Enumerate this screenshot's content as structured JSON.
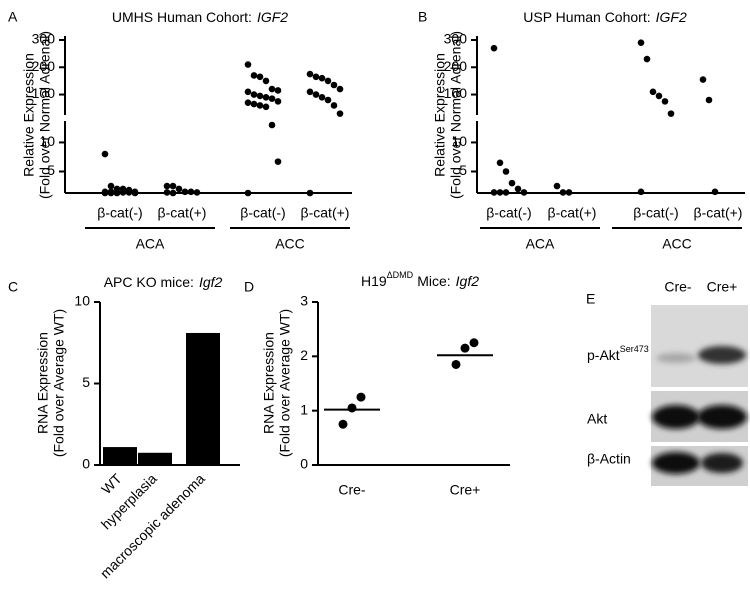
{
  "chart_data": [
    {
      "type": "grouped-dot-plot",
      "panel": "A",
      "title": "UMHS Human Cohort:",
      "title_gene": "IGF2",
      "ylabel": [
        "Relative Expression",
        "(Fold over Normal Adrenal)"
      ],
      "groups": [
        {
          "name": "ACA",
          "categories": [
            "β-cat(-)",
            "β-cat(+)"
          ],
          "values": [
            [
              8,
              2.5,
              2,
              2,
              1.8,
              1.5,
              1.5,
              1.5,
              1.4,
              1.4,
              1.4,
              1.3,
              1.3,
              1.3,
              1.3
            ],
            [
              2.5,
              2.5,
              2,
              1.5,
              1.5,
              1.4,
              1.4,
              1.3
            ]
          ]
        },
        {
          "name": "ACC",
          "categories": [
            "β-cat(-)",
            "β-cat(+)"
          ],
          "values": [
            [
              210,
              170,
              165,
              150,
              120,
              115,
              110,
              100,
              95,
              90,
              85,
              75,
              70,
              65,
              60,
              55,
              13,
              6.7,
              1.3
            ],
            [
              175,
              165,
              160,
              150,
              135,
              120,
              110,
              100,
              90,
              80,
              60,
              30,
              1.3
            ]
          ]
        }
      ],
      "ylim": [
        1.3,
        13
      ],
      "ylim_upper": [
        25,
        300
      ],
      "yticks": [
        5,
        10,
        100,
        200,
        300
      ],
      "color": "#000000"
    },
    {
      "type": "grouped-dot-plot",
      "panel": "B",
      "title": "USP Human Cohort:",
      "title_gene": "IGF2",
      "ylabel": [
        "Relative Expression",
        "(Fold over Normal Adrenal)"
      ],
      "groups": [
        {
          "name": "ACA",
          "categories": [
            "β-cat(-)",
            "β-cat(+)"
          ],
          "values": [
            [
              270,
              6.5,
              5,
              3,
              2,
              1.4,
              1.4,
              1.4,
              1.4
            ],
            [
              2.5,
              1.4,
              1.4
            ]
          ]
        },
        {
          "name": "ACC",
          "categories": [
            "β-cat(-)",
            "β-cat(+)"
          ],
          "values": [
            [
              290,
              230,
              110,
              95,
              75,
              30,
              1.5
            ],
            [
              155,
              80,
              1.5
            ]
          ]
        }
      ],
      "ylim": [
        1.3,
        13
      ],
      "ylim_upper": [
        25,
        300
      ],
      "yticks": [
        5,
        10,
        100,
        200,
        300
      ],
      "color": "#000000"
    },
    {
      "type": "bar",
      "panel": "C",
      "title": "APC KO mice:",
      "title_gene": "Igf2",
      "ylabel": [
        "RNA Expression",
        "(Fold over Average WT)"
      ],
      "categories": [
        "WT",
        "hyperplasia",
        "macroscopic adenoma"
      ],
      "values": [
        1.1,
        0.75,
        8.1
      ],
      "ylim": [
        0,
        10
      ],
      "yticks": [
        0,
        5,
        10
      ],
      "color": "#000000"
    },
    {
      "type": "dot-plot",
      "panel": "D",
      "title": "H19",
      "title_sup": "ΔDMD",
      "title_rest": "Mice:",
      "title_gene": "Igf2",
      "ylabel": [
        "RNA Expression",
        "(Fold over Average WT)"
      ],
      "categories": [
        "Cre-",
        "Cre+"
      ],
      "values": [
        [
          1.25,
          1.05,
          0.75
        ],
        [
          2.25,
          2.15,
          1.85
        ]
      ],
      "means": [
        1.02,
        2.02
      ],
      "ylim": [
        0,
        3
      ],
      "yticks": [
        0,
        1,
        2,
        3
      ],
      "color": "#000000"
    },
    {
      "type": "western-blot",
      "panel": "E",
      "lanes": [
        "Cre-",
        "Cre+"
      ],
      "rows": [
        {
          "label": "p-Akt",
          "label_sup": "Ser473"
        },
        {
          "label": "Akt"
        },
        {
          "label": "β-Actin"
        }
      ]
    }
  ]
}
